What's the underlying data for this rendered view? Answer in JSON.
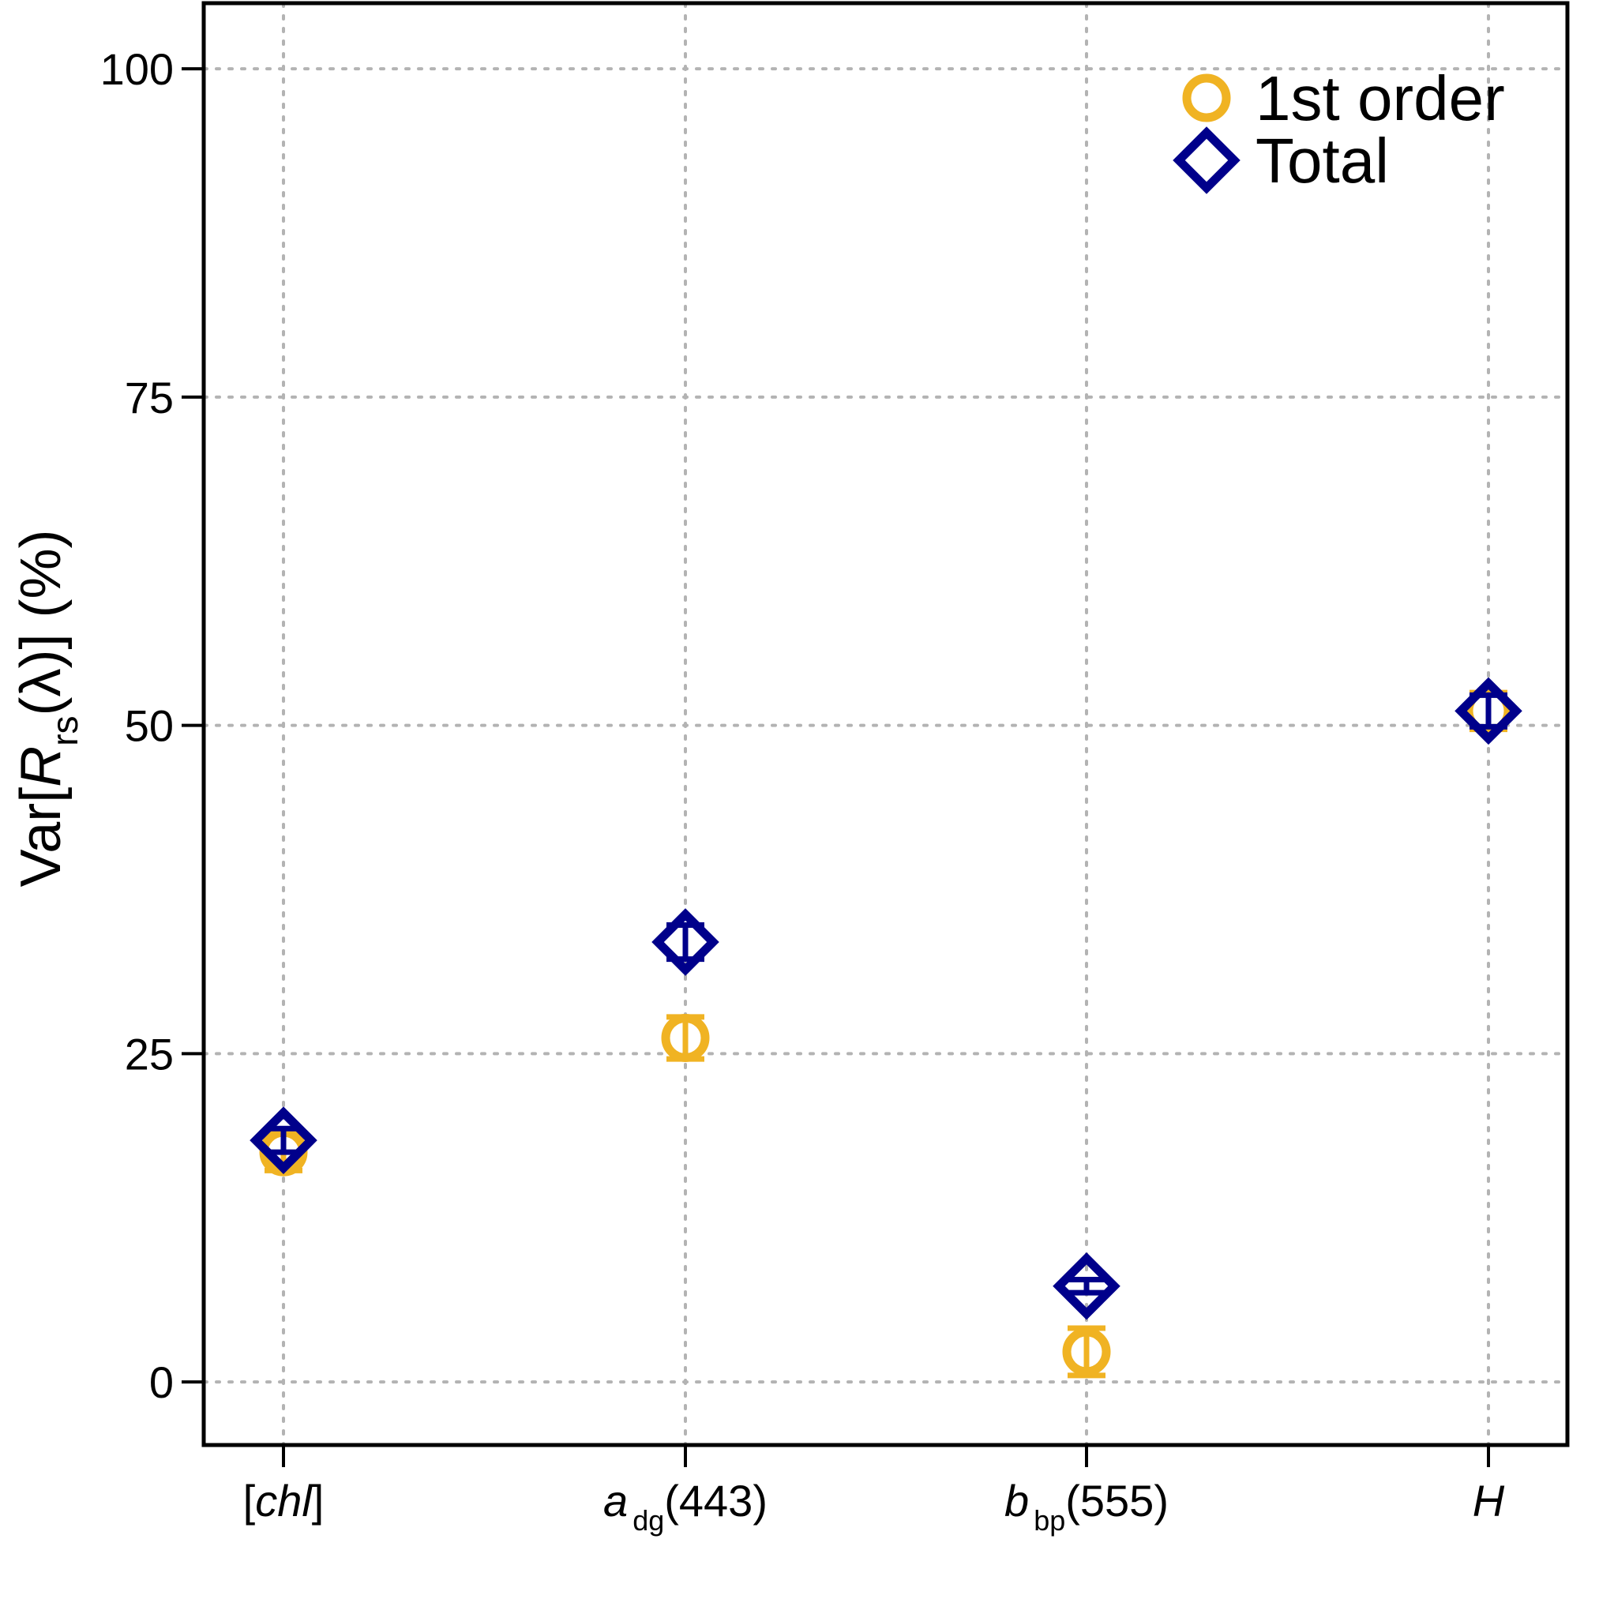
{
  "chart_data": {
    "type": "scatter",
    "categories": [
      {
        "parts": [
          {
            "t": "[",
            "i": false
          },
          {
            "t": "chl",
            "i": true
          },
          {
            "t": "]",
            "i": false
          }
        ]
      },
      {
        "parts": [
          {
            "t": "a",
            "i": true
          },
          {
            "t": "dg",
            "i": false,
            "sub": true
          },
          {
            "t": "(443)",
            "i": false
          }
        ]
      },
      {
        "parts": [
          {
            "t": "b",
            "i": true
          },
          {
            "t": "bp",
            "i": false,
            "sub": true
          },
          {
            "t": "(555)",
            "i": false
          }
        ]
      },
      {
        "parts": [
          {
            "t": "H",
            "i": true
          }
        ]
      }
    ],
    "series": [
      {
        "name": "1st order",
        "marker": "circle",
        "color": "#f0b323",
        "values": [
          17.5,
          26.2,
          2.3,
          51.1
        ],
        "errors": [
          1.4,
          1.6,
          1.8,
          1.4
        ]
      },
      {
        "name": "Total",
        "marker": "diamond",
        "color": "#00008b",
        "values": [
          18.4,
          33.5,
          7.3,
          51.1
        ],
        "errors": [
          0.9,
          1.3,
          0.5,
          1.2
        ]
      }
    ],
    "ylabel": {
      "prefix": "Var[",
      "italic": "R",
      "sub": "rs",
      "suffix": "(λ)] (%)"
    },
    "yticks": [
      0,
      25,
      50,
      75,
      100
    ],
    "ylim": [
      -4.8,
      105
    ],
    "grid": true,
    "legend_position": "top-right"
  }
}
